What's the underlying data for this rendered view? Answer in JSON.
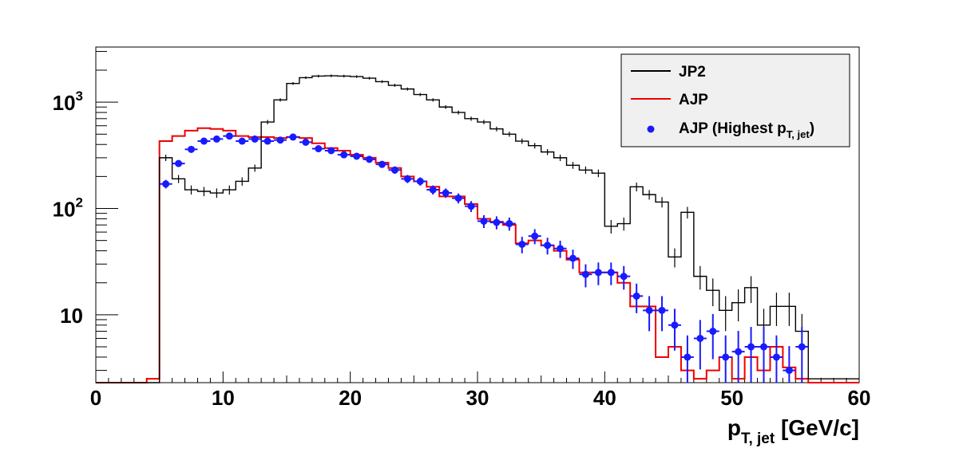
{
  "chart_data": {
    "type": "histogram",
    "xlabel": "p",
    "xlabel_sub": "T, jet",
    "xlabel_unit": " [GeV/c]",
    "xlim": [
      0,
      60
    ],
    "ylim": [
      2.3,
      3300
    ],
    "yscale": "log",
    "x_ticks": [
      "0",
      "10",
      "20",
      "30",
      "40",
      "50",
      "60"
    ],
    "y_ticks": [
      {
        "value": 10,
        "base": "10",
        "exp": ""
      },
      {
        "value": 100,
        "base": "10",
        "exp": "2"
      },
      {
        "value": 1000,
        "base": "10",
        "exp": "3"
      }
    ],
    "bin_edges_start": 0,
    "bin_width": 1,
    "legend_position": "top-right",
    "legend": [
      {
        "label": "JP2"
      },
      {
        "label": "AJP"
      },
      {
        "label": "AJP (Highest p",
        "sub": "T, jet",
        "suffix": ")"
      }
    ],
    "series": [
      {
        "name": "JP2",
        "style": "step-errorbars",
        "color": "#000000",
        "values": [
          0,
          0,
          0,
          0,
          0,
          300,
          190,
          150,
          145,
          140,
          150,
          180,
          240,
          650,
          1050,
          1500,
          1700,
          1760,
          1770,
          1760,
          1740,
          1680,
          1560,
          1440,
          1330,
          1180,
          1050,
          900,
          800,
          700,
          650,
          560,
          500,
          430,
          390,
          340,
          300,
          255,
          230,
          215,
          200,
          175,
          160,
          135,
          115,
          100,
          92,
          80,
          60,
          50,
          35,
          28,
          18,
          12,
          14,
          8,
          2.5,
          2.5,
          2.5,
          2.5
        ],
        "overrides": {
          "40": 68,
          "41": 72,
          "45": 35,
          "47": 23,
          "48": 17,
          "49": 11,
          "50": 13,
          "51": 18,
          "52": 8,
          "53": 12,
          "54": 12,
          "55": 7
        }
      },
      {
        "name": "AJP",
        "style": "step",
        "color": "#ee0000",
        "values": [
          0,
          0,
          0,
          0,
          0,
          430,
          480,
          540,
          570,
          560,
          540,
          480,
          470,
          470,
          460,
          470,
          460,
          410,
          370,
          350,
          320,
          300,
          270,
          240,
          200,
          180,
          160,
          130,
          130,
          110,
          80,
          75,
          70,
          47,
          50,
          45,
          40,
          33,
          25,
          25,
          25,
          20,
          12,
          12,
          8,
          5,
          4,
          3,
          3,
          4,
          3,
          4,
          3,
          5,
          4,
          5,
          0,
          0,
          0,
          0
        ],
        "overrides": {
          "4": 2.5,
          "44": 4,
          "46": 3,
          "47": 2.5,
          "48": 3,
          "50": 2.5,
          "52": 3,
          "54": 3.2,
          "55": 2.5
        }
      },
      {
        "name": "AJP (Highest p_T, jet)",
        "style": "markers-errorbars",
        "color": "#1a1aff",
        "points": [
          {
            "x": 5.5,
            "y": 170
          },
          {
            "x": 6.5,
            "y": 265
          },
          {
            "x": 7.5,
            "y": 360
          },
          {
            "x": 8.5,
            "y": 430
          },
          {
            "x": 9.5,
            "y": 450
          },
          {
            "x": 10.5,
            "y": 480
          },
          {
            "x": 11.5,
            "y": 430
          },
          {
            "x": 12.5,
            "y": 450
          },
          {
            "x": 13.5,
            "y": 430
          },
          {
            "x": 14.5,
            "y": 440
          },
          {
            "x": 15.5,
            "y": 470
          },
          {
            "x": 16.5,
            "y": 420
          },
          {
            "x": 17.5,
            "y": 365
          },
          {
            "x": 18.5,
            "y": 350
          },
          {
            "x": 19.5,
            "y": 320
          },
          {
            "x": 20.5,
            "y": 310
          },
          {
            "x": 21.5,
            "y": 290
          },
          {
            "x": 22.5,
            "y": 260
          },
          {
            "x": 23.5,
            "y": 230
          },
          {
            "x": 24.5,
            "y": 190
          },
          {
            "x": 25.5,
            "y": 180
          },
          {
            "x": 26.5,
            "y": 150
          },
          {
            "x": 27.5,
            "y": 140
          },
          {
            "x": 28.5,
            "y": 125
          },
          {
            "x": 29.5,
            "y": 105
          },
          {
            "x": 30.5,
            "y": 76
          },
          {
            "x": 31.5,
            "y": 74
          },
          {
            "x": 32.5,
            "y": 72
          },
          {
            "x": 33.5,
            "y": 46
          },
          {
            "x": 34.5,
            "y": 55
          },
          {
            "x": 35.5,
            "y": 45
          },
          {
            "x": 36.5,
            "y": 42
          },
          {
            "x": 37.5,
            "y": 34
          },
          {
            "x": 38.5,
            "y": 24
          },
          {
            "x": 39.5,
            "y": 25
          },
          {
            "x": 40.5,
            "y": 25
          },
          {
            "x": 41.5,
            "y": 23
          },
          {
            "x": 42.5,
            "y": 15
          },
          {
            "x": 43.5,
            "y": 11
          },
          {
            "x": 44.5,
            "y": 11
          },
          {
            "x": 45.5,
            "y": 8
          },
          {
            "x": 46.5,
            "y": 4
          },
          {
            "x": 47.5,
            "y": 6
          },
          {
            "x": 48.5,
            "y": 7
          },
          {
            "x": 49.5,
            "y": 4
          },
          {
            "x": 50.5,
            "y": 4.5
          },
          {
            "x": 51.5,
            "y": 5
          },
          {
            "x": 52.5,
            "y": 5
          },
          {
            "x": 53.5,
            "y": 4
          },
          {
            "x": 54.5,
            "y": 3
          },
          {
            "x": 55.5,
            "y": 5
          }
        ]
      }
    ]
  }
}
